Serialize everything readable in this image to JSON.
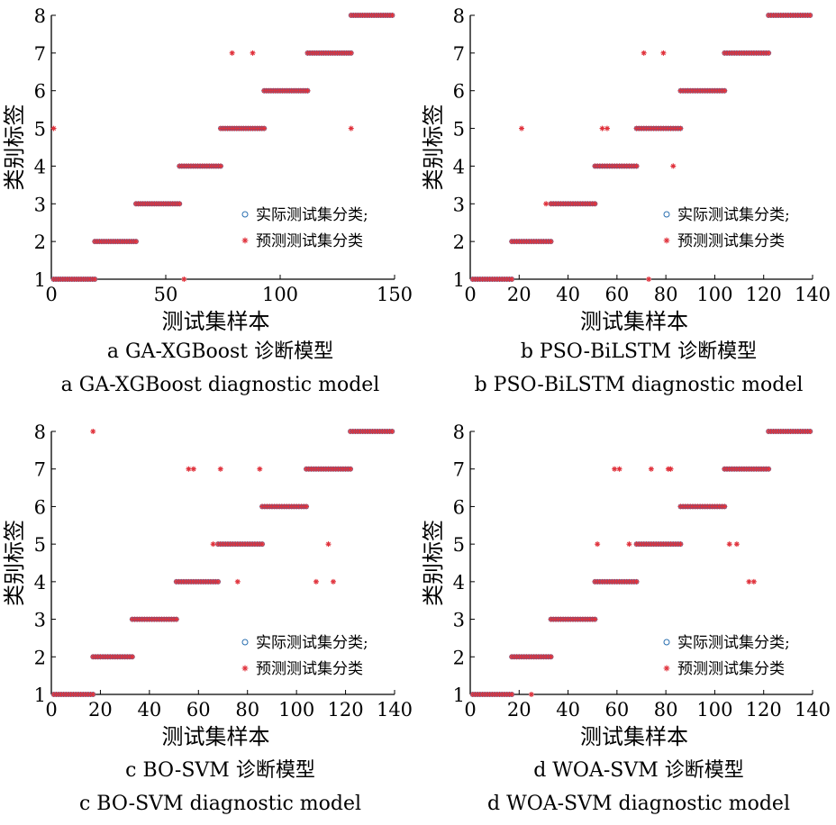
{
  "figure": {
    "legend_labels": [
      "实际测试集分类;",
      "预测测试集分类"
    ],
    "colors": {
      "actual": "#2a6fb0",
      "predicted": "#e0323c",
      "axis": "#000000"
    }
  },
  "chart_data": [
    {
      "type": "scatter",
      "xlabel": "测试集样本",
      "ylabel": "类别标签",
      "xlim": [
        0,
        150
      ],
      "ylim": [
        1,
        8
      ],
      "xticks": [
        0,
        50,
        100,
        150
      ],
      "yticks": [
        1,
        2,
        3,
        4,
        5,
        6,
        7,
        8
      ],
      "legend_position": "center-right",
      "caption_zh": "a  GA-XGBoost 诊断模型",
      "caption_en": "a  GA-XGBoost diagnostic model",
      "segments": [
        {
          "label": 1,
          "from": 1,
          "to": 19
        },
        {
          "label": 2,
          "from": 19,
          "to": 37
        },
        {
          "label": 3,
          "from": 37,
          "to": 56
        },
        {
          "label": 4,
          "from": 56,
          "to": 74
        },
        {
          "label": 5,
          "from": 74,
          "to": 93
        },
        {
          "label": 6,
          "from": 93,
          "to": 112
        },
        {
          "label": 7,
          "from": 112,
          "to": 131
        },
        {
          "label": 8,
          "from": 131,
          "to": 149
        }
      ],
      "outliers": [
        [
          1,
          5
        ],
        [
          58,
          1
        ],
        [
          79,
          7
        ],
        [
          88,
          7
        ],
        [
          131,
          5
        ]
      ]
    },
    {
      "type": "scatter",
      "xlabel": "测试集样本",
      "ylabel": "类别标签",
      "xlim": [
        0,
        140
      ],
      "ylim": [
        1,
        8
      ],
      "xticks": [
        0,
        20,
        40,
        60,
        80,
        100,
        120,
        140
      ],
      "yticks": [
        1,
        2,
        3,
        4,
        5,
        6,
        7,
        8
      ],
      "legend_position": "center-right",
      "caption_zh": "b  PSO-BiLSTM 诊断模型",
      "caption_en": "b  PSO-BiLSTM diagnostic model",
      "segments": [
        {
          "label": 1,
          "from": 1,
          "to": 17
        },
        {
          "label": 2,
          "from": 17,
          "to": 33
        },
        {
          "label": 3,
          "from": 33,
          "to": 51
        },
        {
          "label": 4,
          "from": 51,
          "to": 68
        },
        {
          "label": 5,
          "from": 68,
          "to": 86
        },
        {
          "label": 6,
          "from": 86,
          "to": 104
        },
        {
          "label": 7,
          "from": 104,
          "to": 122
        },
        {
          "label": 8,
          "from": 122,
          "to": 139
        }
      ],
      "outliers": [
        [
          21,
          5
        ],
        [
          31,
          3
        ],
        [
          54,
          5
        ],
        [
          56,
          5
        ],
        [
          71,
          7
        ],
        [
          73,
          1
        ],
        [
          79,
          7
        ],
        [
          83,
          4
        ]
      ]
    },
    {
      "type": "scatter",
      "xlabel": "测试集样本",
      "ylabel": "类别标签",
      "xlim": [
        0,
        140
      ],
      "ylim": [
        1,
        8
      ],
      "xticks": [
        0,
        20,
        40,
        60,
        80,
        100,
        120,
        140
      ],
      "yticks": [
        1,
        2,
        3,
        4,
        5,
        6,
        7,
        8
      ],
      "legend_position": "lower-right",
      "caption_zh": "c  BO-SVM 诊断模型",
      "caption_en": "c  BO-SVM diagnostic model",
      "segments": [
        {
          "label": 1,
          "from": 1,
          "to": 17
        },
        {
          "label": 2,
          "from": 17,
          "to": 33
        },
        {
          "label": 3,
          "from": 33,
          "to": 51
        },
        {
          "label": 4,
          "from": 51,
          "to": 68
        },
        {
          "label": 5,
          "from": 68,
          "to": 86
        },
        {
          "label": 6,
          "from": 86,
          "to": 104
        },
        {
          "label": 7,
          "from": 104,
          "to": 122
        },
        {
          "label": 8,
          "from": 122,
          "to": 139
        }
      ],
      "outliers": [
        [
          17,
          8
        ],
        [
          56,
          7
        ],
        [
          58,
          7
        ],
        [
          66,
          5
        ],
        [
          69,
          7
        ],
        [
          76,
          4
        ],
        [
          85,
          7
        ],
        [
          108,
          4
        ],
        [
          113,
          5
        ],
        [
          115,
          4
        ]
      ]
    },
    {
      "type": "scatter",
      "xlabel": "测试集样本",
      "ylabel": "类别标签",
      "xlim": [
        0,
        140
      ],
      "ylim": [
        1,
        8
      ],
      "xticks": [
        0,
        20,
        40,
        60,
        80,
        100,
        120,
        140
      ],
      "yticks": [
        1,
        2,
        3,
        4,
        5,
        6,
        7,
        8
      ],
      "legend_position": "lower-right",
      "caption_zh": "d  WOA-SVM 诊断模型",
      "caption_en": "d  WOA-SVM diagnostic model",
      "segments": [
        {
          "label": 1,
          "from": 1,
          "to": 17
        },
        {
          "label": 2,
          "from": 17,
          "to": 33
        },
        {
          "label": 3,
          "from": 33,
          "to": 51
        },
        {
          "label": 4,
          "from": 51,
          "to": 68
        },
        {
          "label": 5,
          "from": 68,
          "to": 86
        },
        {
          "label": 6,
          "from": 86,
          "to": 104
        },
        {
          "label": 7,
          "from": 104,
          "to": 122
        },
        {
          "label": 8,
          "from": 122,
          "to": 139
        }
      ],
      "outliers": [
        [
          25,
          1
        ],
        [
          52,
          5
        ],
        [
          59,
          7
        ],
        [
          61,
          7
        ],
        [
          65,
          5
        ],
        [
          74,
          7
        ],
        [
          81,
          7
        ],
        [
          82,
          7
        ],
        [
          106,
          5
        ],
        [
          109,
          5
        ],
        [
          114,
          4
        ],
        [
          116,
          4
        ]
      ]
    }
  ]
}
